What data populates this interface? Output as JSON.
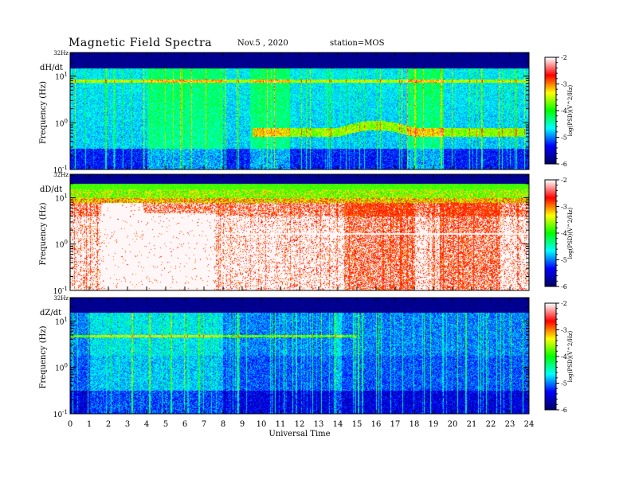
{
  "header": {
    "title": "Magnetic  Field  Spectra",
    "date": "Nov.5  , 2020",
    "station": "station=MOS"
  },
  "chart_data": {
    "type": "heatmap",
    "title": "Magnetic  Field  Spectra",
    "xlabel": "Universal Time",
    "ylabel": "Frequency  (Hz)",
    "x_ticks": [
      "0",
      "1",
      "2",
      "3",
      "4",
      "5",
      "6",
      "7",
      "8",
      "9",
      "10",
      "11",
      "12",
      "13",
      "14",
      "15",
      "16",
      "17",
      "18",
      "19",
      "20",
      "21",
      "22",
      "23",
      "24"
    ],
    "xlim": [
      0,
      24
    ],
    "ylim_text": [
      "10^-1",
      "10^0",
      "10^1",
      "32Hz"
    ],
    "y_scale": "log",
    "colorbar": {
      "label": "log(PSD)(V^2/Hz)",
      "ticks": [
        "-2",
        "-3",
        "-4",
        "-5",
        "-6"
      ],
      "range": [
        -6,
        -2
      ],
      "colormap": [
        "#000066",
        "#0000ff",
        "#00ffff",
        "#00ff00",
        "#ffff00",
        "#ff0000",
        "#ffffff"
      ]
    },
    "panels": [
      {
        "component": "dH/dt",
        "ylabel": "Frequency  (Hz)",
        "top_label": "32Hz",
        "y_ticks": [
          {
            "base": "10",
            "exp": "1"
          },
          {
            "base": "10",
            "exp": "0"
          },
          {
            "base": "10",
            "exp": "-1"
          }
        ],
        "colorbar_ticks": [
          "-2",
          "-3",
          "-4",
          "-5",
          "-6"
        ]
      },
      {
        "component": "dD/dt",
        "ylabel": "Frequency  (Hz)",
        "top_label": "32Hz",
        "y_ticks": [
          {
            "base": "10",
            "exp": "1"
          },
          {
            "base": "10",
            "exp": "0"
          },
          {
            "base": "10",
            "exp": "-1"
          }
        ],
        "colorbar_ticks": [
          "-2",
          "-3",
          "-4",
          "-5",
          "-6"
        ]
      },
      {
        "component": "dZ/dt",
        "ylabel": "Frequency  (Hz)",
        "top_label": "32Hz",
        "y_ticks": [
          {
            "base": "10",
            "exp": "1"
          },
          {
            "base": "10",
            "exp": "0"
          },
          {
            "base": "10",
            "exp": "-1"
          }
        ],
        "colorbar_ticks": [
          "-2",
          "-3",
          "-4",
          "-5",
          "-6"
        ]
      }
    ]
  }
}
